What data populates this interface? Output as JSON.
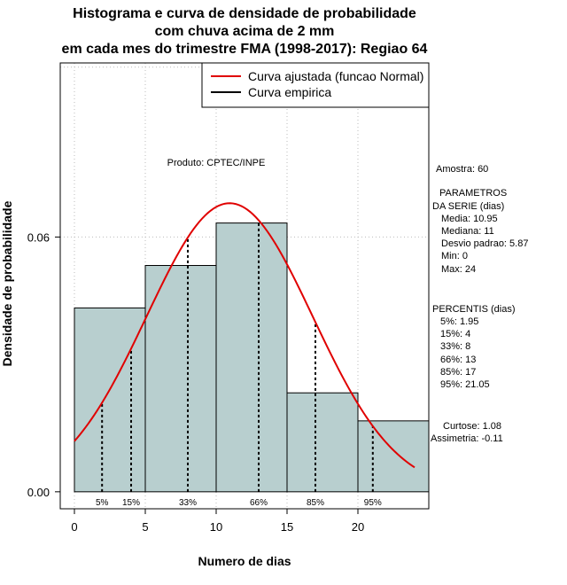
{
  "chart_data": {
    "type": "bar",
    "title_lines": [
      "Histograma e curva de densidade de probabilidade",
      "com chuva acima de 2 mm",
      "em cada mes do trimestre FMA (1998-2017): Regiao 64"
    ],
    "xlabel": "Numero de dias",
    "ylabel": "Densidade de probabilidade",
    "xlim": [
      -1,
      25
    ],
    "ylim": [
      -0.004,
      0.101
    ],
    "x_ticks": [
      0,
      5,
      10,
      15,
      20
    ],
    "y_ticks": [
      0.0,
      0.06
    ],
    "y_tick_labels": [
      "0.00",
      "0.06"
    ],
    "grid": true,
    "grid_x": [
      0,
      5,
      10,
      15,
      20
    ],
    "grid_y": [
      0.06,
      0.1
    ],
    "bins": [
      {
        "x0": 0,
        "x1": 5,
        "density": 0.0433
      },
      {
        "x0": 5,
        "x1": 10,
        "density": 0.0533
      },
      {
        "x0": 10,
        "x1": 15,
        "density": 0.0633
      },
      {
        "x0": 15,
        "x1": 20,
        "density": 0.0233
      },
      {
        "x0": 20,
        "x1": 25,
        "density": 0.0167
      }
    ],
    "bar_color": "#b8cfcf",
    "normal_fit": {
      "mean": 10.95,
      "sd": 5.87,
      "x_range": [
        0,
        24
      ],
      "color": "#e00000"
    },
    "percentile_markers": [
      {
        "label": "5%",
        "x": 1.95
      },
      {
        "label": "15%",
        "x": 4
      },
      {
        "label": "33%",
        "x": 8
      },
      {
        "label": "66%",
        "x": 13
      },
      {
        "label": "85%",
        "x": 17
      },
      {
        "label": "95%",
        "x": 21.05
      }
    ],
    "legend": {
      "position": "top-right",
      "entries": [
        {
          "label": "Curva ajustada (funcao Normal)",
          "color": "#e00000"
        },
        {
          "label": "Curva empirica",
          "color": "#000000"
        }
      ]
    },
    "product_label": "Produto: CPTEC/INPE"
  },
  "stats_panel": {
    "amostra": "Amostra: 60",
    "param_title_1": "PARAMETROS",
    "param_title_2": "DA SERIE (dias)",
    "media": "Media: 10.95",
    "mediana": "Mediana: 11",
    "desvio": "Desvio padrao: 5.87",
    "min": "Min: 0",
    "max": "Max: 24",
    "pct_title": "PERCENTIS (dias)",
    "p5": "5%: 1.95",
    "p15": "15%: 4",
    "p33": "33%: 8",
    "p66": "66%: 13",
    "p85": "85%: 17",
    "p95": "95%: 21.05",
    "curtose": "Curtose: 1.08",
    "assimetria": "Assimetria: -0.11"
  }
}
